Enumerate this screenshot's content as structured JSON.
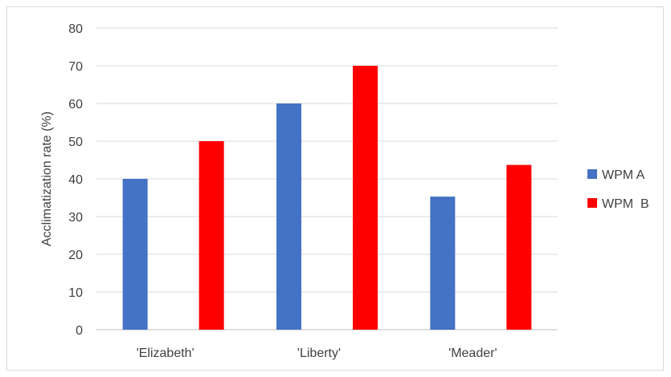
{
  "chart_data": {
    "type": "bar",
    "categories": [
      "'Elizabeth'",
      "'Liberty'",
      "'Meader'"
    ],
    "series": [
      {
        "name": "WPM A",
        "values": [
          40,
          60,
          35.3
        ],
        "color": "#4472c4"
      },
      {
        "name": "WPM  B",
        "values": [
          50,
          70,
          43.7
        ],
        "color": "#ff0000"
      }
    ],
    "title": "",
    "xlabel": "",
    "ylabel": "Acclimatization rate (%)",
    "ylim": [
      0,
      80
    ],
    "yticks": [
      0,
      10,
      20,
      30,
      40,
      50,
      60,
      70,
      80
    ],
    "grid": true,
    "legend": "right"
  }
}
